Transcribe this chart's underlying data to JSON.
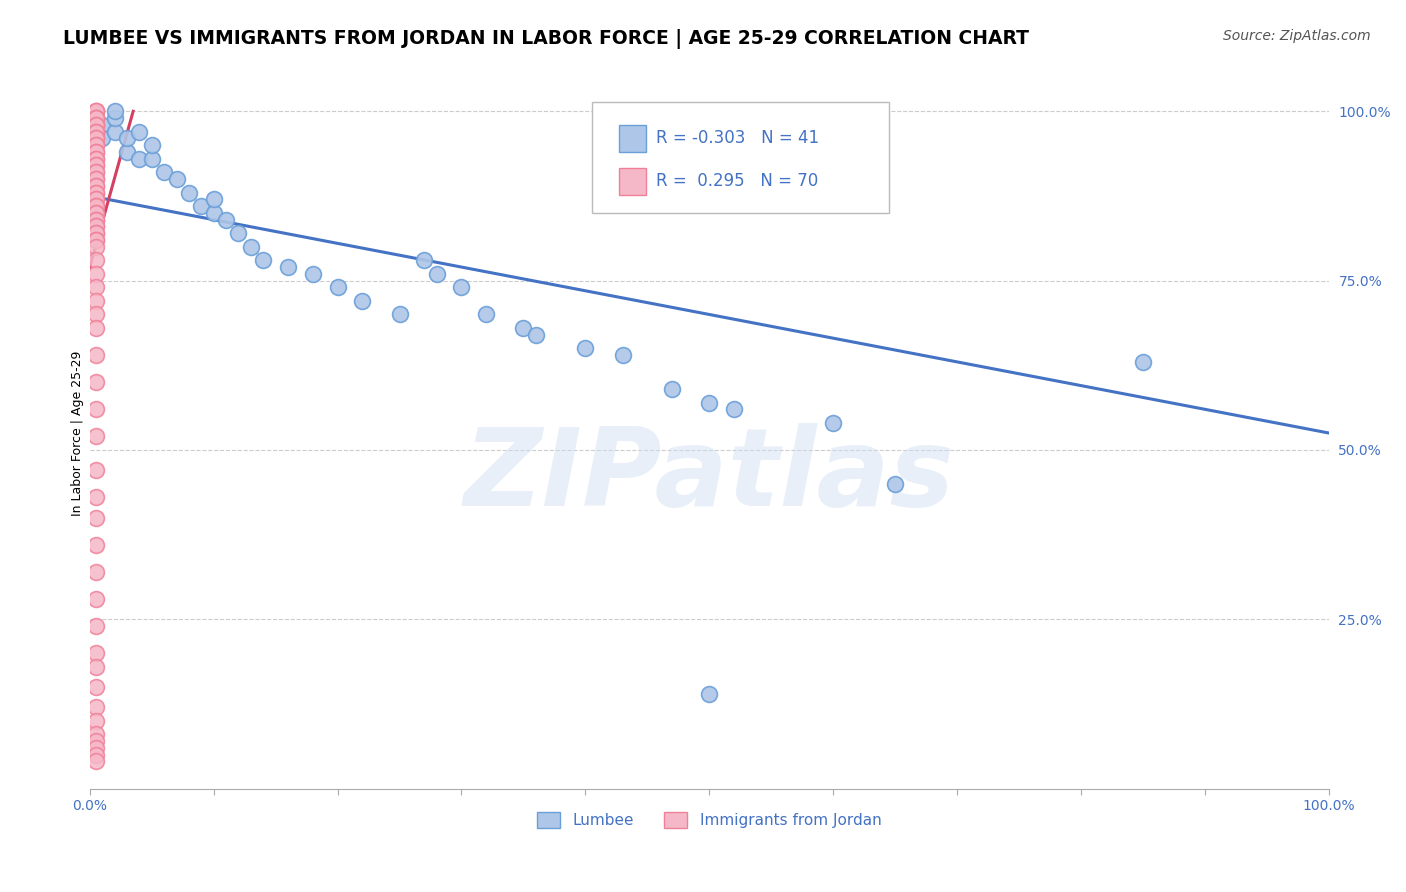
{
  "title": "LUMBEE VS IMMIGRANTS FROM JORDAN IN LABOR FORCE | AGE 25-29 CORRELATION CHART",
  "source": "Source: ZipAtlas.com",
  "ylabel": "In Labor Force | Age 25-29",
  "watermark": "ZIPatlas",
  "R_blue": -0.303,
  "N_blue": 41,
  "R_pink": 0.295,
  "N_pink": 70,
  "xlim": [
    0.0,
    1.0
  ],
  "ylim": [
    0.0,
    1.05
  ],
  "yticks_right": [
    0.25,
    0.5,
    0.75,
    1.0
  ],
  "yticklabels_right": [
    "25.0%",
    "50.0%",
    "75.0%",
    "100.0%"
  ],
  "blue_color": "#aec6e8",
  "pink_color": "#f5b8c8",
  "blue_edge_color": "#6a9fd8",
  "pink_edge_color": "#f08098",
  "blue_line_color": "#4472c4",
  "pink_line_color": "#d44060",
  "tick_label_color": "#4472c4",
  "legend_label_blue": "Lumbee",
  "legend_label_pink": "Immigrants from Jordan",
  "blue_scatter_x": [
    0.01,
    0.01,
    0.02,
    0.02,
    0.02,
    0.03,
    0.03,
    0.04,
    0.04,
    0.05,
    0.05,
    0.06,
    0.07,
    0.08,
    0.09,
    0.1,
    0.1,
    0.11,
    0.12,
    0.13,
    0.14,
    0.16,
    0.18,
    0.2,
    0.22,
    0.25,
    0.27,
    0.28,
    0.3,
    0.32,
    0.35,
    0.36,
    0.4,
    0.43,
    0.47,
    0.5,
    0.52,
    0.6,
    0.65,
    0.85,
    0.5
  ],
  "blue_scatter_y": [
    0.98,
    0.96,
    0.97,
    0.99,
    1.0,
    0.94,
    0.96,
    0.93,
    0.97,
    0.93,
    0.95,
    0.91,
    0.9,
    0.88,
    0.86,
    0.85,
    0.87,
    0.84,
    0.82,
    0.8,
    0.78,
    0.77,
    0.76,
    0.74,
    0.72,
    0.7,
    0.78,
    0.76,
    0.74,
    0.7,
    0.68,
    0.67,
    0.65,
    0.64,
    0.59,
    0.57,
    0.56,
    0.54,
    0.45,
    0.63,
    0.14
  ],
  "pink_scatter_x": [
    0.005,
    0.005,
    0.005,
    0.005,
    0.005,
    0.005,
    0.005,
    0.005,
    0.005,
    0.005,
    0.005,
    0.005,
    0.005,
    0.005,
    0.005,
    0.005,
    0.005,
    0.005,
    0.005,
    0.005,
    0.005,
    0.005,
    0.005,
    0.005,
    0.005,
    0.005,
    0.005,
    0.005,
    0.005,
    0.005,
    0.005,
    0.005,
    0.005,
    0.005,
    0.005,
    0.005,
    0.005,
    0.005,
    0.005,
    0.005,
    0.005,
    0.005,
    0.005,
    0.005,
    0.005,
    0.005,
    0.005,
    0.005,
    0.005,
    0.005,
    0.005,
    0.005,
    0.005,
    0.005,
    0.005,
    0.005,
    0.005,
    0.005,
    0.005,
    0.005,
    0.005,
    0.005,
    0.005,
    0.005,
    0.005,
    0.005,
    0.005,
    0.005,
    0.005,
    0.005
  ],
  "pink_scatter_y": [
    1.0,
    1.0,
    1.0,
    0.99,
    0.99,
    0.99,
    0.98,
    0.98,
    0.97,
    0.97,
    0.96,
    0.96,
    0.95,
    0.95,
    0.94,
    0.94,
    0.93,
    0.93,
    0.92,
    0.92,
    0.91,
    0.91,
    0.9,
    0.9,
    0.89,
    0.89,
    0.88,
    0.88,
    0.87,
    0.87,
    0.86,
    0.86,
    0.85,
    0.85,
    0.84,
    0.84,
    0.83,
    0.83,
    0.82,
    0.82,
    0.81,
    0.81,
    0.8,
    0.78,
    0.76,
    0.74,
    0.72,
    0.7,
    0.68,
    0.64,
    0.6,
    0.56,
    0.52,
    0.47,
    0.43,
    0.4,
    0.36,
    0.32,
    0.28,
    0.24,
    0.2,
    0.18,
    0.15,
    0.12,
    0.1,
    0.08,
    0.07,
    0.06,
    0.05,
    0.04
  ],
  "blue_trend_x": [
    0.0,
    1.0
  ],
  "blue_trend_y": [
    0.875,
    0.525
  ],
  "pink_trend_x_start": 0.0,
  "pink_trend_x_end": 0.035,
  "pink_trend_y_start": 0.77,
  "pink_trend_y_end": 1.0,
  "grid_color": "#cccccc",
  "grid_style": "--",
  "bg_color": "#ffffff",
  "title_fontsize": 13.5,
  "source_fontsize": 10,
  "axis_label_fontsize": 9,
  "tick_fontsize": 10,
  "legend_fontsize": 11
}
